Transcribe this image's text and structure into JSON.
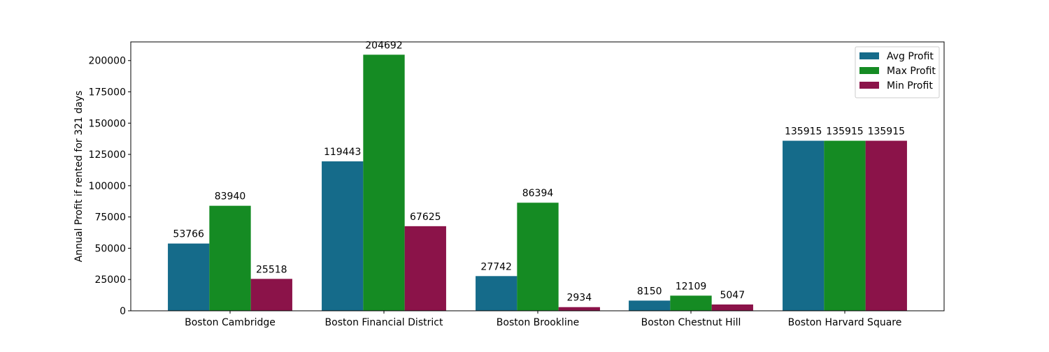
{
  "chart_data": {
    "type": "bar",
    "title": "",
    "xlabel": "",
    "ylabel": "Annual Profit if rented for 321 days",
    "categories": [
      "Boston Cambridge",
      "Boston Financial District",
      "Boston Brookline",
      "Boston Chestnut Hill",
      "Boston Harvard Square"
    ],
    "series": [
      {
        "name": "Avg Profit",
        "color": "#156b8a",
        "values": [
          53766,
          119443,
          27742,
          8150,
          135915
        ]
      },
      {
        "name": "Max Profit",
        "color": "#158b23",
        "values": [
          83940,
          204692,
          86394,
          12109,
          135915
        ]
      },
      {
        "name": "Min Profit",
        "color": "#8b1349",
        "values": [
          25518,
          67625,
          2934,
          5047,
          135915
        ]
      }
    ],
    "ylim": [
      0,
      214927
    ],
    "yticks": [
      0,
      25000,
      50000,
      75000,
      100000,
      125000,
      150000,
      175000,
      200000
    ],
    "data_labels": true,
    "grid": false,
    "legend_position": "top-right"
  }
}
